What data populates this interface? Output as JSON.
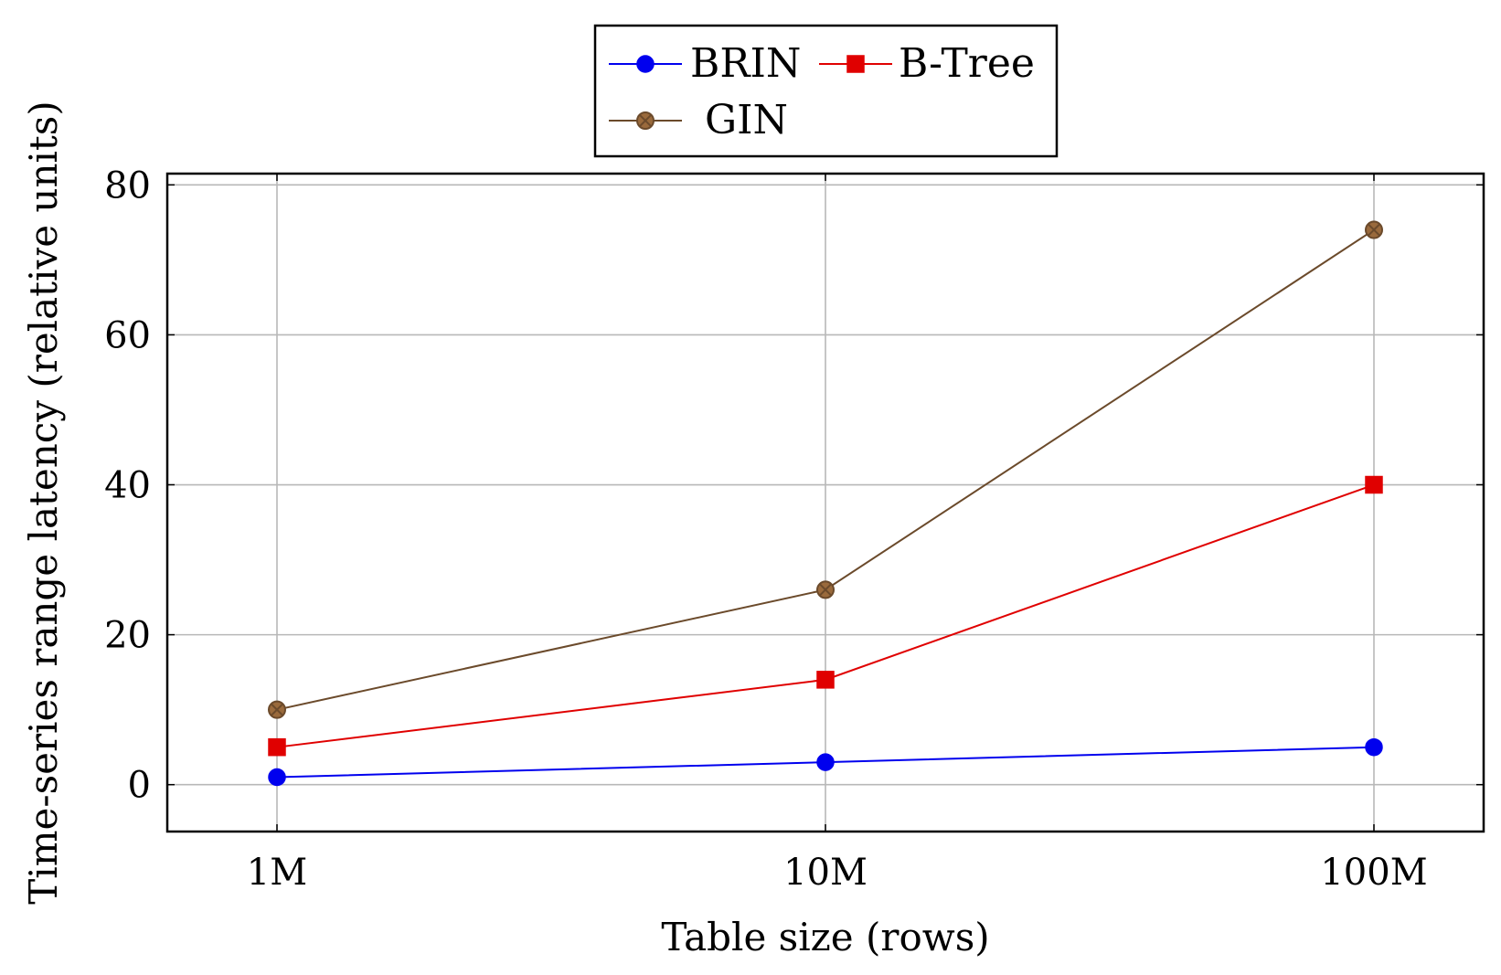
{
  "chart_data": {
    "type": "line",
    "categories": [
      "1M",
      "10M",
      "100M"
    ],
    "series": [
      {
        "name": "BRIN",
        "values": [
          1,
          3,
          5
        ],
        "color": "#0000ee",
        "marker": "circle"
      },
      {
        "name": "B-Tree",
        "values": [
          5,
          14,
          40
        ],
        "color": "#e00000",
        "marker": "square"
      },
      {
        "name": "GIN",
        "values": [
          10,
          26,
          74
        ],
        "color": "#6b4a2b",
        "marker": "otimes",
        "fill": "#9a6a3c"
      }
    ],
    "xlabel": "Table size (rows)",
    "ylabel": "Time-series range latency (relative units)",
    "ylim": [
      -6.25,
      81.5
    ],
    "yticks": [
      0,
      20,
      40,
      60,
      80
    ],
    "grid": true,
    "legend": "top-center",
    "x_scale": "log"
  }
}
